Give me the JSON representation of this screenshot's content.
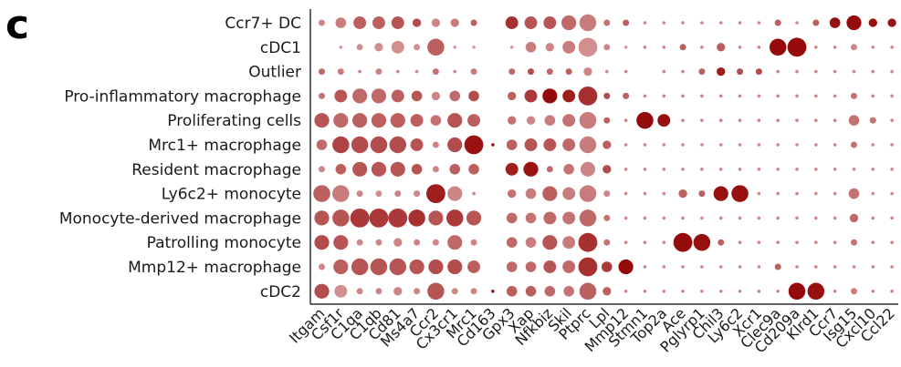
{
  "panel_label": "c",
  "chart_data": {
    "type": "dotplot",
    "rows": [
      "Ccr7+ DC",
      "cDC1",
      "Outlier",
      "Pro-inflammatory macrophage",
      "Proliferating cells",
      "Mrc1+ macrophage",
      "Resident macrophage",
      "Ly6c2+ monocyte",
      "Monocyte-derived macrophage",
      "Patrolling monocyte",
      "Mmp12+ macrophage",
      "cDC2"
    ],
    "genes": [
      "Itgam",
      "Csf1r",
      "C1qa",
      "C1qb",
      "Cd81",
      "Ms4a7",
      "Ccr2",
      "Cx3cr1",
      "Mrc1",
      "Cd163",
      "Gpx3",
      "Xap",
      "Nfkbiz",
      "Skil",
      "Ptprc",
      "Lpl",
      "Mmp12",
      "Stmn1",
      "Top2a",
      "Ace",
      "Pglyrp1",
      "Chil3",
      "Ly6c2",
      "Xcr1",
      "Clec9a",
      "Cd209a",
      "Klrd1",
      "Ccr7",
      "Isg15",
      "Cxcl10",
      "Ccl22"
    ],
    "encoding": "each dot = [size 0-10, color 0-1 (light pink to dark red)]",
    "values": [
      [
        [
          2,
          0.3
        ],
        [
          4,
          0.35
        ],
        [
          5,
          0.5
        ],
        [
          5,
          0.5
        ],
        [
          5,
          0.55
        ],
        [
          3,
          0.6
        ],
        [
          3,
          0.3
        ],
        [
          3,
          0.35
        ],
        [
          2,
          0.5
        ],
        [
          0,
          0
        ],
        [
          5,
          0.75
        ],
        [
          5,
          0.55
        ],
        [
          5,
          0.55
        ],
        [
          6,
          0.45
        ],
        [
          7,
          0.35
        ],
        [
          2,
          0.4
        ],
        [
          2,
          0.5
        ],
        [
          1,
          0.3
        ],
        [
          1,
          0.3
        ],
        [
          1,
          0.3
        ],
        [
          1,
          0.3
        ],
        [
          1,
          0.3
        ],
        [
          1,
          0.3
        ],
        [
          1,
          0.3
        ],
        [
          2,
          0.5
        ],
        [
          1,
          0.3
        ],
        [
          2,
          0.5
        ],
        [
          4,
          0.92
        ],
        [
          6,
          0.95
        ],
        [
          3,
          0.92
        ],
        [
          3,
          0.9
        ]
      ],
      [
        [
          0,
          0
        ],
        [
          1,
          0.2
        ],
        [
          2,
          0.25
        ],
        [
          3,
          0.25
        ],
        [
          5,
          0.25
        ],
        [
          2,
          0.25
        ],
        [
          7,
          0.5
        ],
        [
          1,
          0.2
        ],
        [
          1,
          0.2
        ],
        [
          0,
          0
        ],
        [
          1,
          0.2
        ],
        [
          4,
          0.35
        ],
        [
          3,
          0.3
        ],
        [
          5,
          0.35
        ],
        [
          8,
          0.25
        ],
        [
          2,
          0.3
        ],
        [
          1,
          0.2
        ],
        [
          1,
          0.3
        ],
        [
          1,
          0.3
        ],
        [
          2,
          0.5
        ],
        [
          1,
          0.3
        ],
        [
          3,
          0.5
        ],
        [
          1,
          0.3
        ],
        [
          1,
          0.3
        ],
        [
          7,
          0.95
        ],
        [
          8,
          0.95
        ],
        [
          1,
          0.3
        ],
        [
          1,
          0.3
        ],
        [
          2,
          0.3
        ],
        [
          1,
          0.3
        ],
        [
          1,
          0.3
        ]
      ],
      [
        [
          2,
          0.45
        ],
        [
          2,
          0.35
        ],
        [
          1,
          0.3
        ],
        [
          2,
          0.3
        ],
        [
          1,
          0.3
        ],
        [
          1,
          0.3
        ],
        [
          2,
          0.4
        ],
        [
          1,
          0.3
        ],
        [
          2,
          0.35
        ],
        [
          0,
          0
        ],
        [
          2,
          0.45
        ],
        [
          2,
          0.6
        ],
        [
          2,
          0.45
        ],
        [
          2,
          0.5
        ],
        [
          3,
          0.3
        ],
        [
          1,
          0.3
        ],
        [
          1,
          0.3
        ],
        [
          0,
          0
        ],
        [
          1,
          0.3
        ],
        [
          1,
          0.3
        ],
        [
          2,
          0.5
        ],
        [
          3,
          0.85
        ],
        [
          2,
          0.6
        ],
        [
          2,
          0.6
        ],
        [
          1,
          0.3
        ],
        [
          1,
          0.3
        ],
        [
          1,
          0.3
        ],
        [
          1,
          0.3
        ],
        [
          1,
          0.3
        ],
        [
          1,
          0.3
        ],
        [
          1,
          0.3
        ]
      ],
      [
        [
          2,
          0.4
        ],
        [
          5,
          0.55
        ],
        [
          6,
          0.45
        ],
        [
          6,
          0.45
        ],
        [
          5,
          0.5
        ],
        [
          4,
          0.55
        ],
        [
          3,
          0.3
        ],
        [
          4,
          0.45
        ],
        [
          4,
          0.6
        ],
        [
          0,
          0
        ],
        [
          3,
          0.5
        ],
        [
          5,
          0.7
        ],
        [
          6,
          0.95
        ],
        [
          5,
          0.85
        ],
        [
          8,
          0.75
        ],
        [
          2,
          0.6
        ],
        [
          2,
          0.5
        ],
        [
          1,
          0.3
        ],
        [
          1,
          0.3
        ],
        [
          1,
          0.3
        ],
        [
          1,
          0.3
        ],
        [
          1,
          0.3
        ],
        [
          1,
          0.3
        ],
        [
          1,
          0.3
        ],
        [
          1,
          0.3
        ],
        [
          1,
          0.3
        ],
        [
          1,
          0.3
        ],
        [
          1,
          0.3
        ],
        [
          2,
          0.4
        ],
        [
          1,
          0.3
        ],
        [
          1,
          0.3
        ]
      ],
      [
        [
          6,
          0.55
        ],
        [
          6,
          0.45
        ],
        [
          6,
          0.5
        ],
        [
          6,
          0.5
        ],
        [
          6,
          0.5
        ],
        [
          5,
          0.5
        ],
        [
          4,
          0.4
        ],
        [
          6,
          0.55
        ],
        [
          5,
          0.5
        ],
        [
          0,
          0
        ],
        [
          3,
          0.4
        ],
        [
          3,
          0.3
        ],
        [
          4,
          0.35
        ],
        [
          5,
          0.4
        ],
        [
          7,
          0.35
        ],
        [
          2,
          0.5
        ],
        [
          1,
          0.3
        ],
        [
          7,
          0.95
        ],
        [
          5,
          0.92
        ],
        [
          1,
          0.3
        ],
        [
          1,
          0.3
        ],
        [
          1,
          0.3
        ],
        [
          1,
          0.3
        ],
        [
          1,
          0.3
        ],
        [
          1,
          0.3
        ],
        [
          1,
          0.3
        ],
        [
          1,
          0.3
        ],
        [
          1,
          0.3
        ],
        [
          4,
          0.4
        ],
        [
          2,
          0.4
        ],
        [
          1,
          0.3
        ]
      ],
      [
        [
          4,
          0.45
        ],
        [
          7,
          0.65
        ],
        [
          7,
          0.6
        ],
        [
          7,
          0.6
        ],
        [
          7,
          0.6
        ],
        [
          5,
          0.55
        ],
        [
          2,
          0.3
        ],
        [
          6,
          0.6
        ],
        [
          8,
          0.9
        ],
        [
          1,
          0.9
        ],
        [
          4,
          0.5
        ],
        [
          5,
          0.55
        ],
        [
          5,
          0.55
        ],
        [
          5,
          0.45
        ],
        [
          7,
          0.35
        ],
        [
          3,
          0.5
        ],
        [
          1,
          0.3
        ],
        [
          1,
          0.3
        ],
        [
          1,
          0.3
        ],
        [
          1,
          0.3
        ],
        [
          1,
          0.3
        ],
        [
          1,
          0.3
        ],
        [
          1,
          0.3
        ],
        [
          1,
          0.3
        ],
        [
          1,
          0.3
        ],
        [
          1,
          0.3
        ],
        [
          1,
          0.3
        ],
        [
          1,
          0.3
        ],
        [
          2,
          0.4
        ],
        [
          1,
          0.3
        ],
        [
          1,
          0.3
        ]
      ],
      [
        [
          2,
          0.3
        ],
        [
          4,
          0.5
        ],
        [
          6,
          0.55
        ],
        [
          6,
          0.55
        ],
        [
          6,
          0.55
        ],
        [
          4,
          0.55
        ],
        [
          2,
          0.3
        ],
        [
          4,
          0.5
        ],
        [
          4,
          0.5
        ],
        [
          0,
          0
        ],
        [
          5,
          0.85
        ],
        [
          6,
          0.9
        ],
        [
          2,
          0.45
        ],
        [
          4,
          0.4
        ],
        [
          6,
          0.3
        ],
        [
          3,
          0.6
        ],
        [
          1,
          0.3
        ],
        [
          1,
          0.3
        ],
        [
          1,
          0.3
        ],
        [
          1,
          0.3
        ],
        [
          1,
          0.3
        ],
        [
          1,
          0.3
        ],
        [
          1,
          0.3
        ],
        [
          1,
          0.3
        ],
        [
          1,
          0.3
        ],
        [
          1,
          0.3
        ],
        [
          1,
          0.3
        ],
        [
          1,
          0.3
        ],
        [
          1,
          0.3
        ],
        [
          1,
          0.3
        ],
        [
          1,
          0.3
        ]
      ],
      [
        [
          7,
          0.5
        ],
        [
          7,
          0.35
        ],
        [
          2,
          0.3
        ],
        [
          2,
          0.25
        ],
        [
          2,
          0.3
        ],
        [
          2,
          0.3
        ],
        [
          8,
          0.85
        ],
        [
          6,
          0.3
        ],
        [
          1,
          0.3
        ],
        [
          0,
          0
        ],
        [
          3,
          0.4
        ],
        [
          4,
          0.35
        ],
        [
          6,
          0.5
        ],
        [
          5,
          0.35
        ],
        [
          7,
          0.35
        ],
        [
          2,
          0.3
        ],
        [
          1,
          0.3
        ],
        [
          1,
          0.3
        ],
        [
          1,
          0.3
        ],
        [
          3,
          0.5
        ],
        [
          2,
          0.5
        ],
        [
          6,
          0.92
        ],
        [
          7,
          0.92
        ],
        [
          1,
          0.3
        ],
        [
          1,
          0.3
        ],
        [
          1,
          0.3
        ],
        [
          1,
          0.3
        ],
        [
          1,
          0.3
        ],
        [
          4,
          0.4
        ],
        [
          1,
          0.3
        ],
        [
          1,
          0.3
        ]
      ],
      [
        [
          6,
          0.55
        ],
        [
          7,
          0.55
        ],
        [
          8,
          0.7
        ],
        [
          8,
          0.7
        ],
        [
          8,
          0.7
        ],
        [
          7,
          0.75
        ],
        [
          6,
          0.55
        ],
        [
          7,
          0.7
        ],
        [
          6,
          0.55
        ],
        [
          0,
          0
        ],
        [
          4,
          0.45
        ],
        [
          4,
          0.4
        ],
        [
          5,
          0.45
        ],
        [
          5,
          0.4
        ],
        [
          7,
          0.45
        ],
        [
          2,
          0.4
        ],
        [
          1,
          0.3
        ],
        [
          1,
          0.3
        ],
        [
          1,
          0.3
        ],
        [
          1,
          0.3
        ],
        [
          1,
          0.3
        ],
        [
          1,
          0.3
        ],
        [
          1,
          0.3
        ],
        [
          1,
          0.3
        ],
        [
          1,
          0.3
        ],
        [
          1,
          0.3
        ],
        [
          1,
          0.3
        ],
        [
          1,
          0.3
        ],
        [
          3,
          0.45
        ],
        [
          1,
          0.3
        ],
        [
          1,
          0.3
        ]
      ],
      [
        [
          6,
          0.6
        ],
        [
          6,
          0.55
        ],
        [
          2,
          0.3
        ],
        [
          2,
          0.3
        ],
        [
          3,
          0.3
        ],
        [
          2,
          0.3
        ],
        [
          2,
          0.3
        ],
        [
          6,
          0.45
        ],
        [
          2,
          0.3
        ],
        [
          0,
          0
        ],
        [
          4,
          0.45
        ],
        [
          4,
          0.35
        ],
        [
          6,
          0.55
        ],
        [
          5,
          0.35
        ],
        [
          8,
          0.75
        ],
        [
          2,
          0.4
        ],
        [
          1,
          0.3
        ],
        [
          1,
          0.3
        ],
        [
          1,
          0.3
        ],
        [
          8,
          0.95
        ],
        [
          7,
          0.92
        ],
        [
          2,
          0.5
        ],
        [
          1,
          0.3
        ],
        [
          1,
          0.3
        ],
        [
          1,
          0.3
        ],
        [
          1,
          0.3
        ],
        [
          1,
          0.3
        ],
        [
          1,
          0.3
        ],
        [
          2,
          0.4
        ],
        [
          1,
          0.3
        ],
        [
          1,
          0.3
        ]
      ],
      [
        [
          2,
          0.3
        ],
        [
          6,
          0.5
        ],
        [
          7,
          0.55
        ],
        [
          7,
          0.55
        ],
        [
          7,
          0.55
        ],
        [
          6,
          0.55
        ],
        [
          6,
          0.6
        ],
        [
          6,
          0.6
        ],
        [
          5,
          0.5
        ],
        [
          0,
          0
        ],
        [
          4,
          0.45
        ],
        [
          4,
          0.45
        ],
        [
          5,
          0.55
        ],
        [
          5,
          0.45
        ],
        [
          8,
          0.75
        ],
        [
          4,
          0.7
        ],
        [
          6,
          0.95
        ],
        [
          1,
          0.3
        ],
        [
          1,
          0.3
        ],
        [
          1,
          0.3
        ],
        [
          1,
          0.3
        ],
        [
          1,
          0.3
        ],
        [
          1,
          0.3
        ],
        [
          1,
          0.3
        ],
        [
          2,
          0.5
        ],
        [
          1,
          0.3
        ],
        [
          1,
          0.3
        ],
        [
          1,
          0.3
        ],
        [
          1,
          0.3
        ],
        [
          1,
          0.3
        ],
        [
          1,
          0.3
        ]
      ],
      [
        [
          6,
          0.6
        ],
        [
          5,
          0.25
        ],
        [
          2,
          0.3
        ],
        [
          2,
          0.3
        ],
        [
          3,
          0.3
        ],
        [
          2,
          0.3
        ],
        [
          7,
          0.55
        ],
        [
          2,
          0.3
        ],
        [
          2,
          0.3
        ],
        [
          1,
          0.9
        ],
        [
          4,
          0.5
        ],
        [
          4,
          0.5
        ],
        [
          4,
          0.45
        ],
        [
          4,
          0.4
        ],
        [
          7,
          0.5
        ],
        [
          3,
          0.5
        ],
        [
          1,
          0.3
        ],
        [
          1,
          0.3
        ],
        [
          1,
          0.3
        ],
        [
          1,
          0.3
        ],
        [
          1,
          0.3
        ],
        [
          1,
          0.3
        ],
        [
          1,
          0.3
        ],
        [
          1,
          0.3
        ],
        [
          1,
          0.3
        ],
        [
          7,
          0.95
        ],
        [
          7,
          0.92
        ],
        [
          1,
          0.3
        ],
        [
          2,
          0.35
        ],
        [
          1,
          0.3
        ],
        [
          1,
          0.3
        ]
      ]
    ]
  }
}
